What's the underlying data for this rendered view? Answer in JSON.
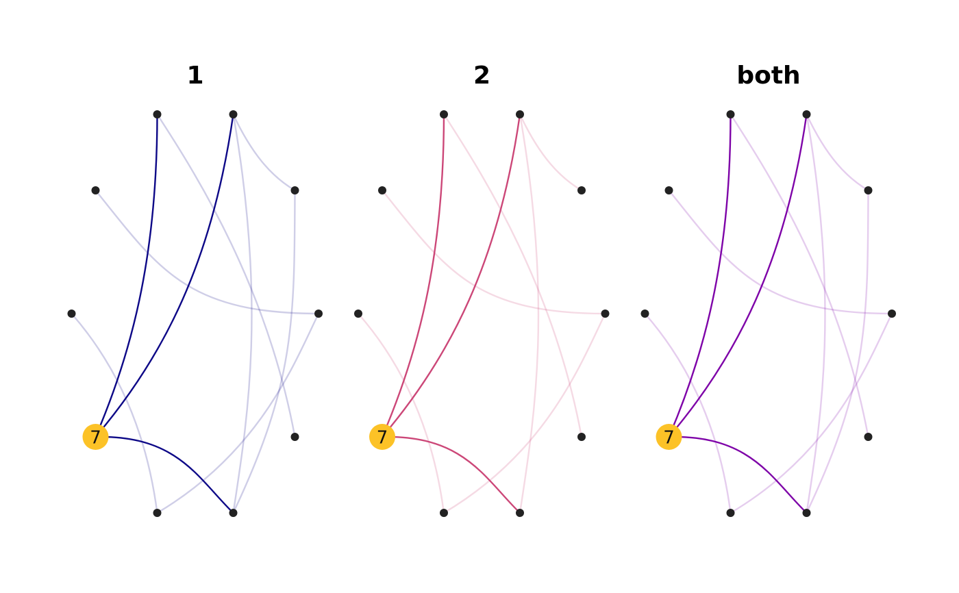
{
  "panels": [
    {
      "key": "p1",
      "title": "1",
      "color": "#0d0887"
    },
    {
      "key": "p2",
      "title": "2",
      "color": "#cc4778"
    },
    {
      "key": "p3",
      "title": "both",
      "color": "#7e03a8"
    }
  ],
  "highlight": {
    "node": "7",
    "color": "#fcc227"
  },
  "nodes": [
    "n1",
    "n2",
    "n3",
    "n4",
    "n5",
    "7",
    "n7",
    "n8",
    "n9",
    "n10"
  ],
  "edges": {
    "highlighted": [
      [
        "7",
        "n1"
      ],
      [
        "7",
        "n2"
      ],
      [
        "7",
        "n8"
      ]
    ],
    "faded_panel_1": [
      [
        "n1",
        "n9"
      ],
      [
        "n2",
        "n3"
      ],
      [
        "n2",
        "n8"
      ],
      [
        "n3",
        "n8"
      ],
      [
        "n4",
        "n10"
      ],
      [
        "n5",
        "n7"
      ],
      [
        "n7",
        "n10"
      ]
    ],
    "faded_panel_2": [
      [
        "n1",
        "n9"
      ],
      [
        "n2",
        "n3"
      ],
      [
        "n2",
        "n8"
      ],
      [
        "n4",
        "n10"
      ],
      [
        "n5",
        "n7"
      ],
      [
        "n7",
        "n10"
      ]
    ],
    "faded_panel_both": [
      [
        "n1",
        "n9"
      ],
      [
        "n2",
        "n3"
      ],
      [
        "n2",
        "n8"
      ],
      [
        "n3",
        "n8"
      ],
      [
        "n4",
        "n10"
      ],
      [
        "n5",
        "n7"
      ],
      [
        "n7",
        "n10"
      ]
    ]
  }
}
